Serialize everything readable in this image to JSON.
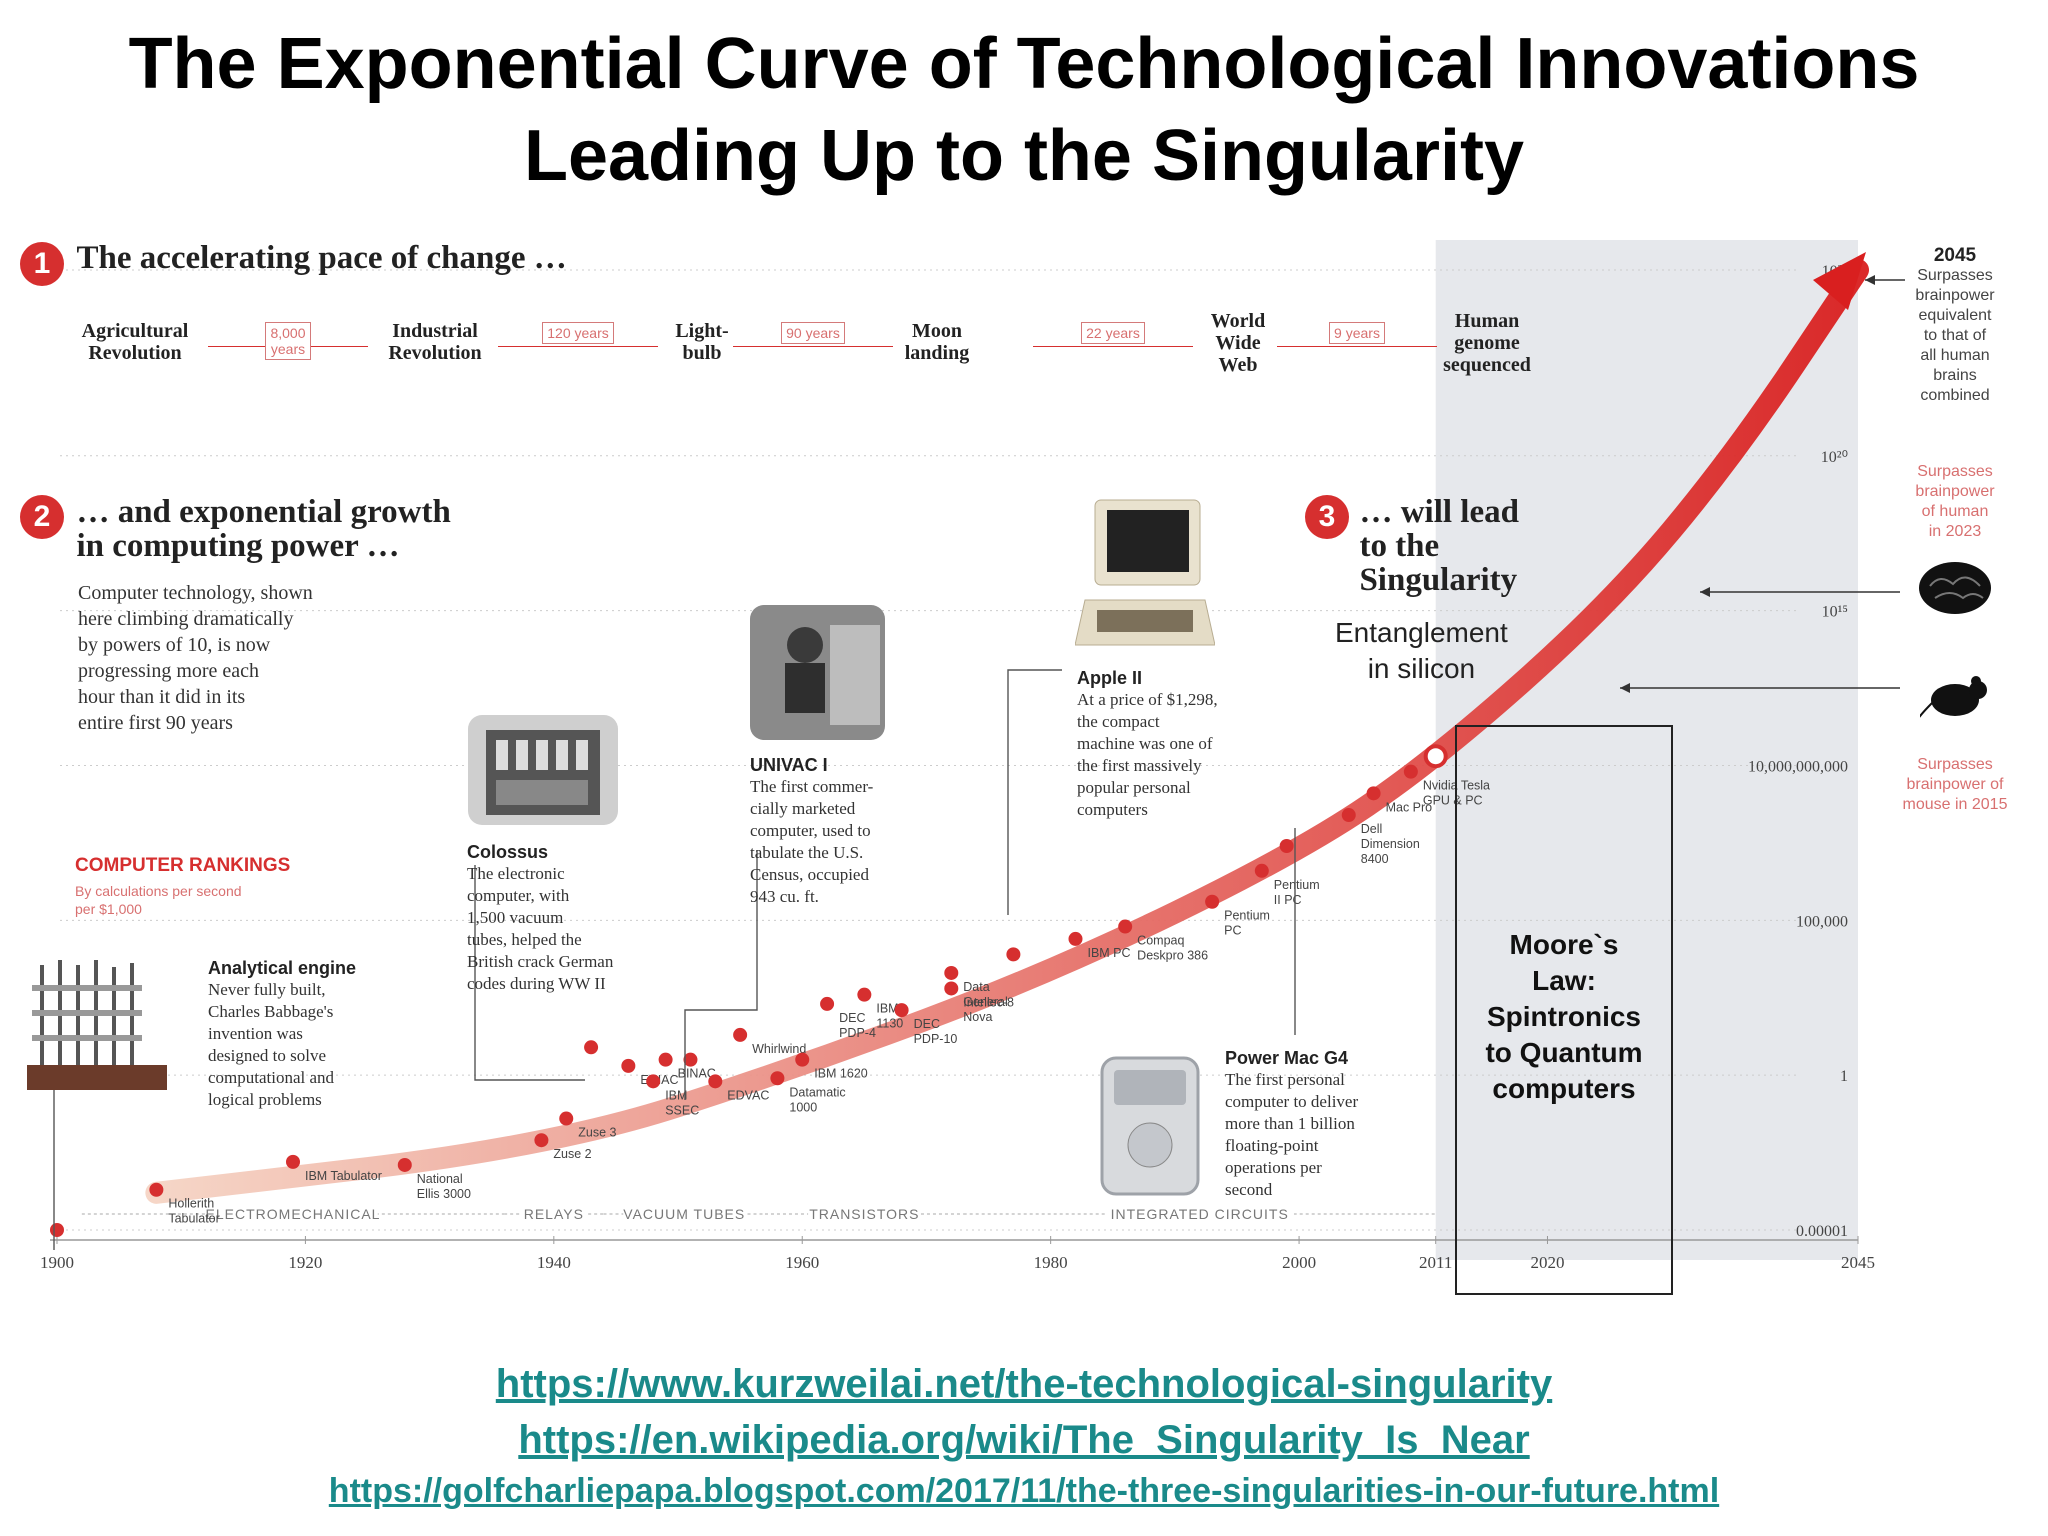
{
  "page_title_line1": "The Exponential Curve of Technological Innovations",
  "page_title_line2": "Leading Up to the Singularity",
  "links": [
    "https://www.kurzweilai.net/the-technological-singularity",
    "https://en.wikipedia.org/wiki/The_Singularity_Is_Near",
    "https://golfcharliepapa.blogspot.com/2017/11/the-three-singularities-in-our-future.html"
  ],
  "colors": {
    "accent": "#d62f2f",
    "curve_start": "#f5d4c4",
    "curve_end": "#d91f1f",
    "link": "#1a8a8a",
    "shade": "#e6e8ec"
  },
  "section1": {
    "num": "1",
    "heading": "The accelerating pace of change …"
  },
  "milestones": [
    {
      "label": "Agricultural\nRevolution"
    },
    {
      "label": "Industrial\nRevolution"
    },
    {
      "label": "Light-\nbulb"
    },
    {
      "label": "Moon\nlanding"
    },
    {
      "label": "World\nWide\nWeb"
    },
    {
      "label": "Human\ngenome\nsequenced"
    }
  ],
  "gaps": [
    "8,000\nyears",
    "120 years",
    "90 years",
    "22 years",
    "9 years"
  ],
  "section2": {
    "num": "2",
    "heading": "… and exponential growth\nin computing power …",
    "body": "Computer technology, shown\nhere climbing dramatically\nby powers of 10, is now\nprogressing more each\nhour than it did in its\nentire first 90 years"
  },
  "section3": {
    "num": "3",
    "heading": "… will lead\nto the\nSingularity",
    "sub": "Entanglement\nin silicon"
  },
  "rankings": {
    "title": "COMPUTER RANKINGS",
    "sub": "By calculations per second\nper $1,000"
  },
  "callouts": {
    "analytical": {
      "title": "Analytical engine",
      "body": "Never fully built,\nCharles Babbage's\ninvention was\ndesigned to solve\ncomputational and\nlogical problems"
    },
    "colossus": {
      "title": "Colossus",
      "body": "The electronic\ncomputer, with\n1,500 vacuum\ntubes, helped the\nBritish crack German\ncodes during WW II"
    },
    "univac": {
      "title": "UNIVAC I",
      "body": "The first commer-\ncially marketed\ncomputer, used to\ntabulate the U.S.\nCensus, occupied\n943 cu. ft."
    },
    "apple": {
      "title": "Apple II",
      "body": "At a price of $1,298,\nthe compact\nmachine was one of\nthe first massively\npopular personal\ncomputers"
    },
    "powermac": {
      "title": "Power Mac G4",
      "body": "The first personal\ncomputer to deliver\nmore than 1 billion\nfloating-point\noperations per\nsecond"
    }
  },
  "moores_law": "Moore`s\nLaw:\nSpintronics\nto Quantum\ncomputers",
  "right_notes": {
    "n2045_year": "2045",
    "n2045_text": "Surpasses\nbrainpower\nequivalent\nto that of\nall human\nbrains\ncombined",
    "human": "Surpasses\nbrainpower\nof human\nin 2023",
    "mouse": "Surpasses\nbrainpower of\nmouse in 2015"
  },
  "eras": [
    "ELECTROMECHANICAL",
    "RELAYS",
    "VACUUM TUBES",
    "TRANSISTORS",
    "INTEGRATED CIRCUITS"
  ],
  "chart_data": {
    "type": "scatter",
    "title": "",
    "xlabel": "",
    "ylabel": "",
    "y_scale": "log",
    "x_ticks": [
      "1900",
      "1920",
      "1940",
      "1960",
      "1980",
      "2000",
      "2011",
      "2020",
      "2045"
    ],
    "y_ticks": [
      "10^26",
      "10^20",
      "10^15",
      "10,000,000,000",
      "100,000",
      "1",
      "0.00001"
    ],
    "xlim": [
      1900,
      2045
    ],
    "ylim_log10": [
      -5,
      26
    ],
    "trend": [
      [
        1908,
        -3.8
      ],
      [
        1940,
        -2.3
      ],
      [
        1960,
        0.3
      ],
      [
        1980,
        3.3
      ],
      [
        2000,
        7.2
      ],
      [
        2011,
        10.2
      ],
      [
        2025,
        15.2
      ],
      [
        2035,
        20
      ],
      [
        2045,
        26
      ]
    ],
    "points": [
      {
        "label": "",
        "x": 1900,
        "y_log10": -5
      },
      {
        "label": "Hollerith\nTabulator",
        "x": 1908,
        "y_log10": -3.7
      },
      {
        "label": "IBM Tabulator",
        "x": 1919,
        "y_log10": -2.8
      },
      {
        "label": "National\nEllis 3000",
        "x": 1928,
        "y_log10": -2.9
      },
      {
        "label": "Zuse 2",
        "x": 1939,
        "y_log10": -2.1
      },
      {
        "label": "Zuse 3",
        "x": 1941,
        "y_log10": -1.4
      },
      {
        "label": "",
        "x": 1943,
        "y_log10": 0.9
      },
      {
        "label": "ENIAC",
        "x": 1946,
        "y_log10": 0.3
      },
      {
        "label": "BINAC",
        "x": 1949,
        "y_log10": 0.5
      },
      {
        "label": "IBM\nSSEC",
        "x": 1948,
        "y_log10": -0.2
      },
      {
        "label": "",
        "x": 1951,
        "y_log10": 0.5
      },
      {
        "label": "Whirlwind",
        "x": 1955,
        "y_log10": 1.3
      },
      {
        "label": "EDVAC",
        "x": 1953,
        "y_log10": -0.2
      },
      {
        "label": "Datamatic\n1000",
        "x": 1958,
        "y_log10": -0.1
      },
      {
        "label": "IBM 1620",
        "x": 1960,
        "y_log10": 0.5
      },
      {
        "label": "DEC\nPDP-4",
        "x": 1962,
        "y_log10": 2.3
      },
      {
        "label": "IBM\n1130",
        "x": 1965,
        "y_log10": 2.6
      },
      {
        "label": "DEC\nPDP-10",
        "x": 1968,
        "y_log10": 2.1
      },
      {
        "label": "Intellec-8",
        "x": 1972,
        "y_log10": 2.8
      },
      {
        "label": "Data\nGeneral\nNova",
        "x": 1972,
        "y_log10": 3.3
      },
      {
        "label": "",
        "x": 1977,
        "y_log10": 3.9
      },
      {
        "label": "IBM PC",
        "x": 1982,
        "y_log10": 4.4
      },
      {
        "label": "Compaq\nDeskpro 386",
        "x": 1986,
        "y_log10": 4.8
      },
      {
        "label": "Pentium\nPC",
        "x": 1993,
        "y_log10": 5.6
      },
      {
        "label": "Pentium\nII PC",
        "x": 1997,
        "y_log10": 6.6
      },
      {
        "label": "",
        "x": 1999,
        "y_log10": 7.4
      },
      {
        "label": "Dell\nDimension\n8400",
        "x": 2004,
        "y_log10": 8.4
      },
      {
        "label": "Mac Pro",
        "x": 2006,
        "y_log10": 9.1
      },
      {
        "label": "Nvidia Tesla\nGPU & PC",
        "x": 2009,
        "y_log10": 9.8
      },
      {
        "label": "",
        "x": 2011,
        "y_log10": 10.3
      }
    ]
  }
}
